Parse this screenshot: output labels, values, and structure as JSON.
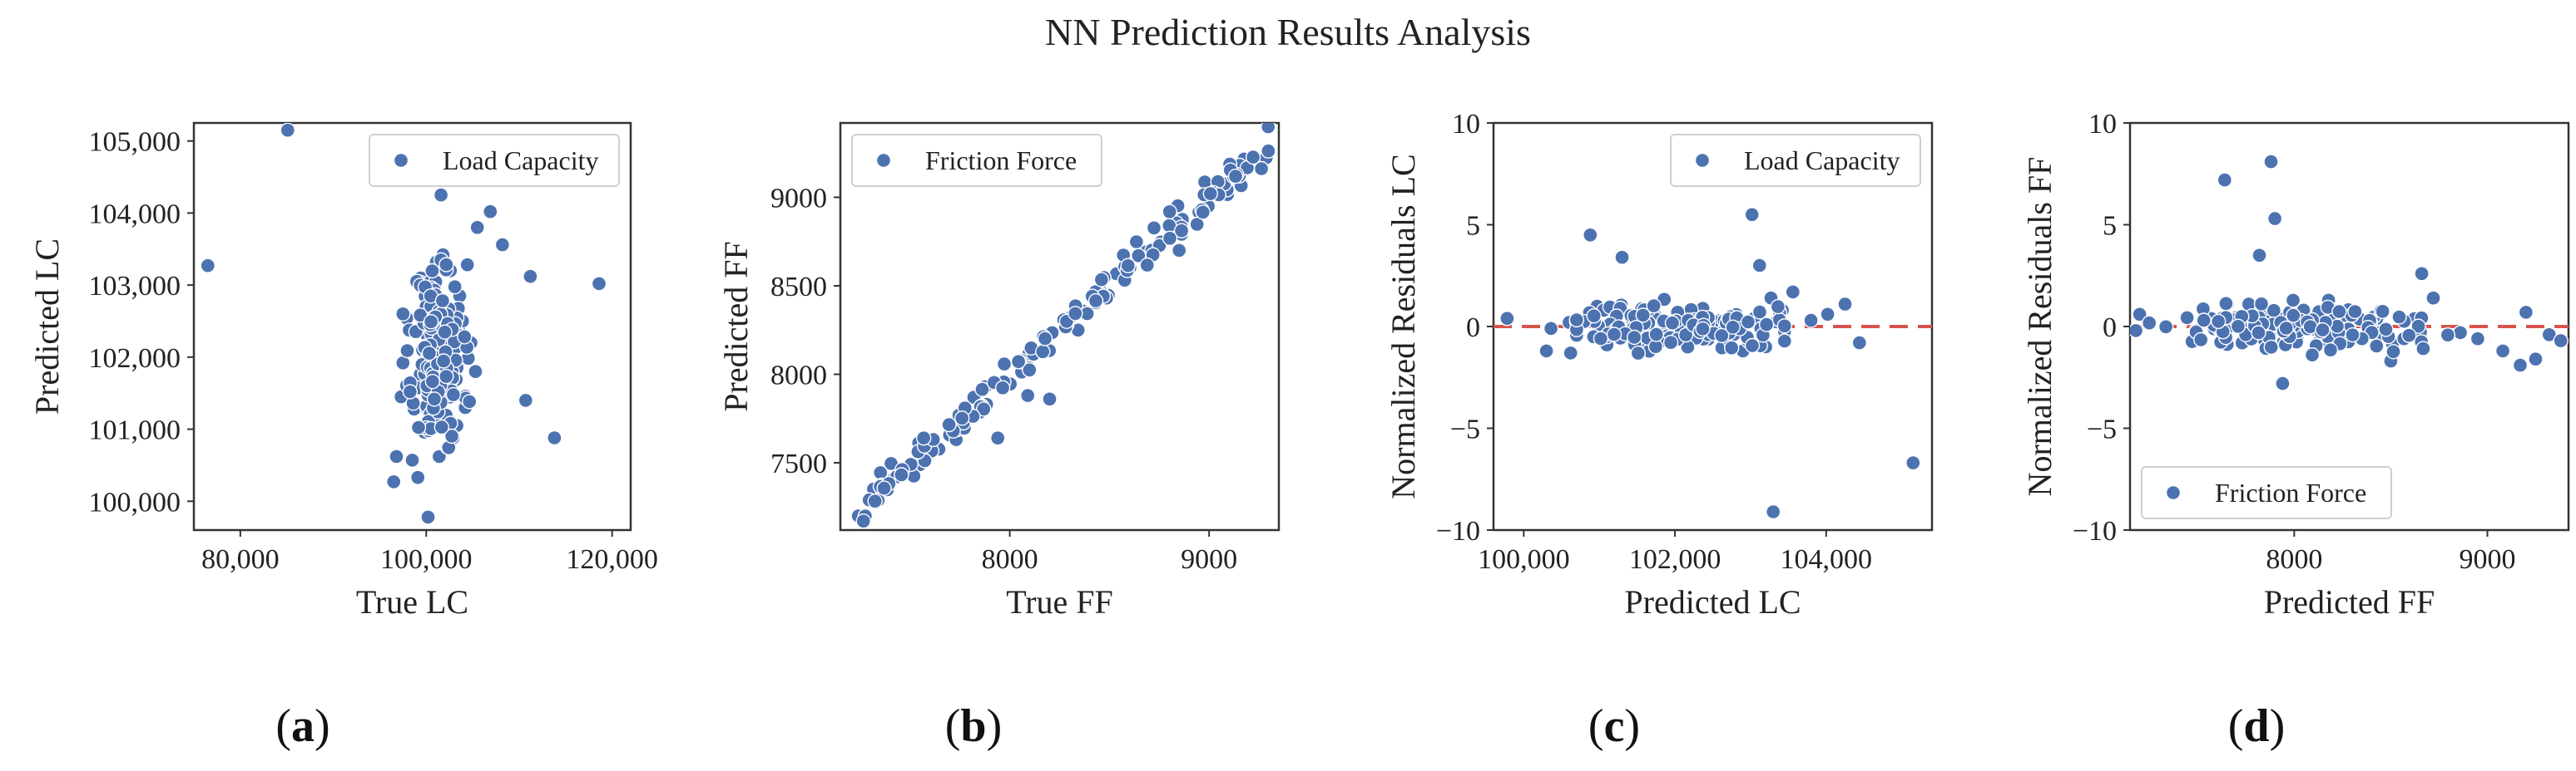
{
  "figure": {
    "title": "NN Prediction Results Analysis",
    "marker_color": "#4c72b0",
    "reference_line_color": "#d9534f"
  },
  "chart_data": [
    {
      "id": "a",
      "panel_label": "a",
      "type": "scatter",
      "title": "",
      "xlabel": "True LC",
      "ylabel": "Predicted LC",
      "xlim": [
        75000,
        122000
      ],
      "ylim": [
        99600,
        105250
      ],
      "xticks": [
        80000,
        100000,
        120000
      ],
      "xtick_labels": [
        "80,000",
        "100,000",
        "120,000"
      ],
      "yticks": [
        100000,
        101000,
        102000,
        103000,
        104000,
        105000
      ],
      "ytick_labels": [
        "100,000",
        "101,000",
        "102,000",
        "103,000",
        "104,000",
        "105,000"
      ],
      "legend": {
        "label": "Load Capacity",
        "loc": "upper right"
      },
      "points": [
        [
          76500,
          103270
        ],
        [
          85100,
          105150
        ],
        [
          113800,
          100880
        ],
        [
          118600,
          103020
        ],
        [
          111200,
          103120
        ],
        [
          110700,
          101400
        ],
        [
          106900,
          104020
        ],
        [
          105500,
          103800
        ],
        [
          108200,
          103560
        ],
        [
          101600,
          104250
        ],
        [
          103600,
          102850
        ],
        [
          103500,
          102380
        ],
        [
          101800,
          103420
        ],
        [
          102600,
          103200
        ],
        [
          97900,
          102540
        ],
        [
          97500,
          101920
        ],
        [
          97300,
          101450
        ],
        [
          98700,
          101280
        ],
        [
          96800,
          100620
        ],
        [
          96500,
          100270
        ],
        [
          98500,
          100570
        ],
        [
          99100,
          100330
        ],
        [
          100200,
          99780
        ],
        [
          101400,
          100620
        ],
        [
          103300,
          101050
        ],
        [
          104200,
          101300
        ],
        [
          102900,
          100880
        ],
        [
          100800,
          103050
        ],
        [
          99400,
          103100
        ],
        [
          100600,
          102870
        ],
        [
          104800,
          102200
        ],
        [
          102300,
          100750
        ],
        [
          101100,
          103320
        ],
        [
          103900,
          102500
        ],
        [
          99800,
          100960
        ],
        [
          105300,
          101800
        ]
      ],
      "cluster": {
        "n": 190,
        "x_center": 101300,
        "x_spread": 1350,
        "y_center": 102050,
        "y_spread": 620,
        "y_min": 100700,
        "y_max": 103350,
        "seed": 11
      }
    },
    {
      "id": "b",
      "panel_label": "b",
      "type": "scatter",
      "title": "",
      "xlabel": "True FF",
      "ylabel": "Predicted FF",
      "xlim": [
        7150,
        9350
      ],
      "ylim": [
        7120,
        9420
      ],
      "xticks": [
        8000,
        9000
      ],
      "xtick_labels": [
        "8000",
        "9000"
      ],
      "yticks": [
        7500,
        8000,
        8500,
        9000
      ],
      "ytick_labels": [
        "7500",
        "8000",
        "8500",
        "9000"
      ],
      "legend": {
        "label": "Friction Force",
        "loc": "upper left"
      },
      "points": [
        [
          7240,
          7200
        ],
        [
          7275,
          7200
        ],
        [
          7940,
          7640
        ],
        [
          8090,
          7880
        ],
        [
          8200,
          7860
        ],
        [
          8850,
          8700
        ],
        [
          7820,
          7870
        ]
      ],
      "diagonal": {
        "n": 170,
        "x_min": 7250,
        "x_max": 9300,
        "noise": 45,
        "seed": 23
      }
    },
    {
      "id": "c",
      "panel_label": "c",
      "type": "scatter",
      "title": "",
      "xlabel": "Predicted LC",
      "ylabel": "Normalized Residuals LC",
      "xlim": [
        99600,
        105400
      ],
      "ylim": [
        -10,
        10
      ],
      "xticks": [
        100000,
        102000,
        104000
      ],
      "xtick_labels": [
        "100,000",
        "102,000",
        "104,000"
      ],
      "yticks": [
        -10,
        -5,
        0,
        5,
        10
      ],
      "ytick_labels": [
        "−10",
        "−5",
        "0",
        "5",
        "10"
      ],
      "legend": {
        "label": "Load Capacity",
        "loc": "upper right"
      },
      "reference_line": 0,
      "points": [
        [
          99780,
          0.4
        ],
        [
          100300,
          -1.2
        ],
        [
          100360,
          -0.1
        ],
        [
          100620,
          -1.3
        ],
        [
          100880,
          4.5
        ],
        [
          101300,
          3.4
        ],
        [
          103020,
          5.5
        ],
        [
          103120,
          3.0
        ],
        [
          103270,
          1.4
        ],
        [
          103420,
          0.8
        ],
        [
          103560,
          1.7
        ],
        [
          104020,
          0.6
        ],
        [
          104250,
          1.1
        ],
        [
          104440,
          -0.8
        ],
        [
          103300,
          -9.1
        ],
        [
          105150,
          -6.7
        ],
        [
          103800,
          0.3
        ],
        [
          100970,
          1.0
        ],
        [
          101100,
          -0.9
        ],
        [
          102900,
          -1.2
        ],
        [
          103200,
          -1.0
        ],
        [
          100600,
          0.2
        ]
      ],
      "cluster": {
        "n": 160,
        "x_center": 102000,
        "x_spread": 650,
        "x_min": 100700,
        "x_max": 103450,
        "y_center": 0.0,
        "y_spread": 0.55,
        "seed": 37
      }
    },
    {
      "id": "d",
      "panel_label": "d",
      "type": "scatter",
      "title": "",
      "xlabel": "Predicted FF",
      "ylabel": "Normalized Residuals FF",
      "xlim": [
        7150,
        9420
      ],
      "ylim": [
        -10,
        10
      ],
      "xticks": [
        8000,
        9000
      ],
      "xtick_labels": [
        "8000",
        "9000"
      ],
      "yticks": [
        -10,
        -5,
        0,
        5,
        10
      ],
      "ytick_labels": [
        "−10",
        "−5",
        "0",
        "5",
        "10"
      ],
      "legend": {
        "label": "Friction Force",
        "loc": "lower left"
      },
      "reference_line": 0,
      "points": [
        [
          7640,
          7.2
        ],
        [
          7880,
          8.1
        ],
        [
          7900,
          5.3
        ],
        [
          7820,
          3.5
        ],
        [
          7940,
          -2.8
        ],
        [
          8660,
          2.6
        ],
        [
          8720,
          1.4
        ],
        [
          9200,
          0.7
        ],
        [
          9320,
          -0.4
        ],
        [
          9380,
          -0.7
        ],
        [
          9170,
          -1.9
        ],
        [
          9250,
          -1.6
        ],
        [
          9080,
          -1.2
        ],
        [
          8950,
          -0.6
        ],
        [
          8860,
          -0.3
        ],
        [
          7200,
          0.6
        ],
        [
          7180,
          -0.2
        ],
        [
          8500,
          -1.7
        ]
      ],
      "cluster": {
        "n": 170,
        "x_center": 8000,
        "x_spread": 330,
        "x_min": 7250,
        "x_max": 8800,
        "y_center": 0.0,
        "y_spread": 0.6,
        "seed": 51
      }
    }
  ]
}
